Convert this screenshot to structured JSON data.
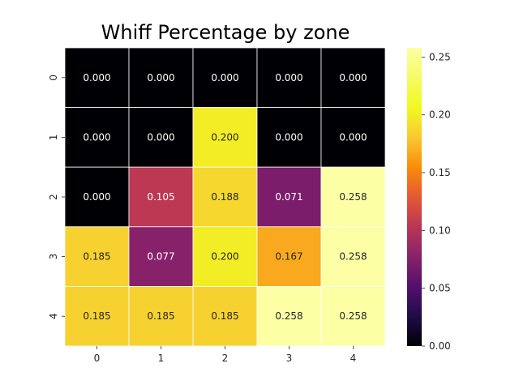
{
  "chart_data": {
    "type": "heatmap",
    "title": "Whiff Percentage by zone",
    "xlabel": "",
    "ylabel": "",
    "x_categories": [
      "0",
      "1",
      "2",
      "3",
      "4"
    ],
    "y_categories": [
      "0",
      "1",
      "2",
      "3",
      "4"
    ],
    "values": [
      [
        0.0,
        0.0,
        0.0,
        0.0,
        0.0
      ],
      [
        0.0,
        0.0,
        0.2,
        0.0,
        0.0
      ],
      [
        0.0,
        0.105,
        0.188,
        0.071,
        0.258
      ],
      [
        0.185,
        0.077,
        0.2,
        0.167,
        0.258
      ],
      [
        0.185,
        0.185,
        0.185,
        0.258,
        0.258
      ]
    ],
    "value_labels": [
      [
        "0.000",
        "0.000",
        "0.000",
        "0.000",
        "0.000"
      ],
      [
        "0.000",
        "0.000",
        "0.200",
        "0.000",
        "0.000"
      ],
      [
        "0.000",
        "0.105",
        "0.188",
        "0.071",
        "0.258"
      ],
      [
        "0.185",
        "0.077",
        "0.200",
        "0.167",
        "0.258"
      ],
      [
        "0.185",
        "0.185",
        "0.185",
        "0.258",
        "0.258"
      ]
    ],
    "colormap": "inferno",
    "vmin": 0.0,
    "vmax": 0.258,
    "colorbar_ticks": [
      "0.00",
      "0.05",
      "0.10",
      "0.15",
      "0.20",
      "0.25"
    ],
    "colorbar_tick_values": [
      0.0,
      0.05,
      0.1,
      0.15,
      0.2,
      0.25
    ],
    "grid": false,
    "cell_border_color": "#ffffff"
  }
}
